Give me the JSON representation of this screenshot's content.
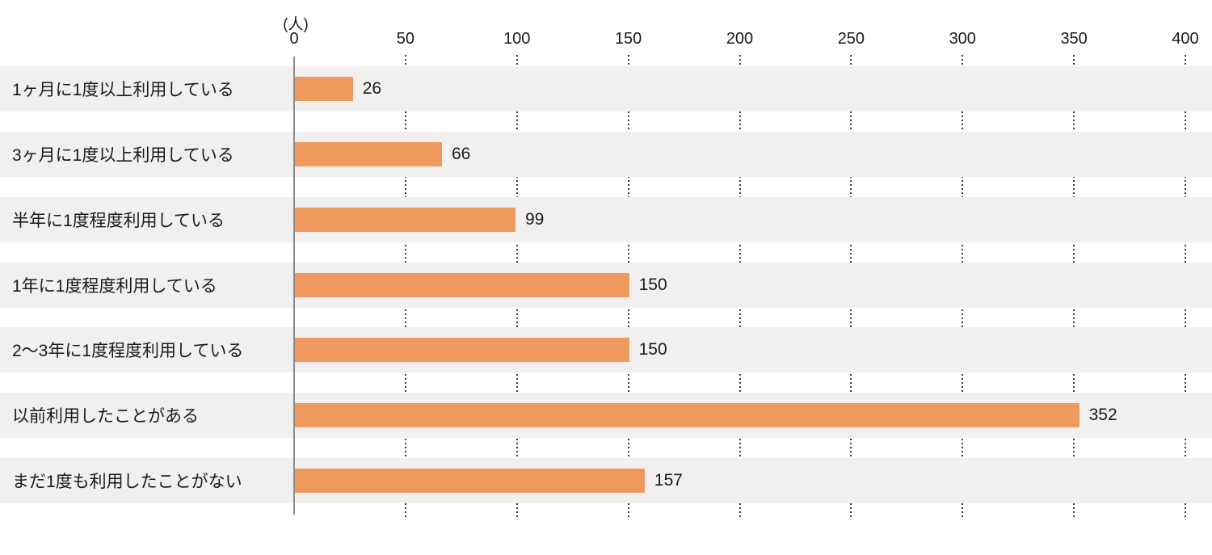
{
  "chart_data": {
    "type": "bar",
    "orientation": "horizontal",
    "title": "",
    "xlabel": "",
    "ylabel": "",
    "unit_label": "(人)",
    "categories": [
      "1ヶ月に1度以上利用している",
      "3ヶ月に1度以上利用している",
      "半年に1度程度利用している",
      "1年に1度程度利用している",
      "2〜3年に1度程度利用している",
      "以前利用したことがある",
      "まだ1度も利用したことがない"
    ],
    "values": [
      26,
      66,
      99,
      150,
      150,
      352,
      157
    ],
    "value_labels": [
      "26",
      "66",
      "99",
      "150",
      "150",
      "352",
      "157"
    ],
    "xlim": [
      0,
      400
    ],
    "xticks": [
      0,
      50,
      100,
      150,
      200,
      250,
      300,
      350,
      400
    ],
    "xtick_labels": [
      "0",
      "50",
      "100",
      "150",
      "200",
      "250",
      "300",
      "350",
      "400"
    ],
    "grid": "dotted-vertical-at-ticks",
    "legend": "none",
    "colors": {
      "bar": "#F0995F",
      "row_stripe": "#F1F0EF",
      "axis_line": "#8C8C8C",
      "grid_dots": "#3C3C3C",
      "text": "#1A1A1A",
      "background": "#FFFFFF"
    }
  }
}
